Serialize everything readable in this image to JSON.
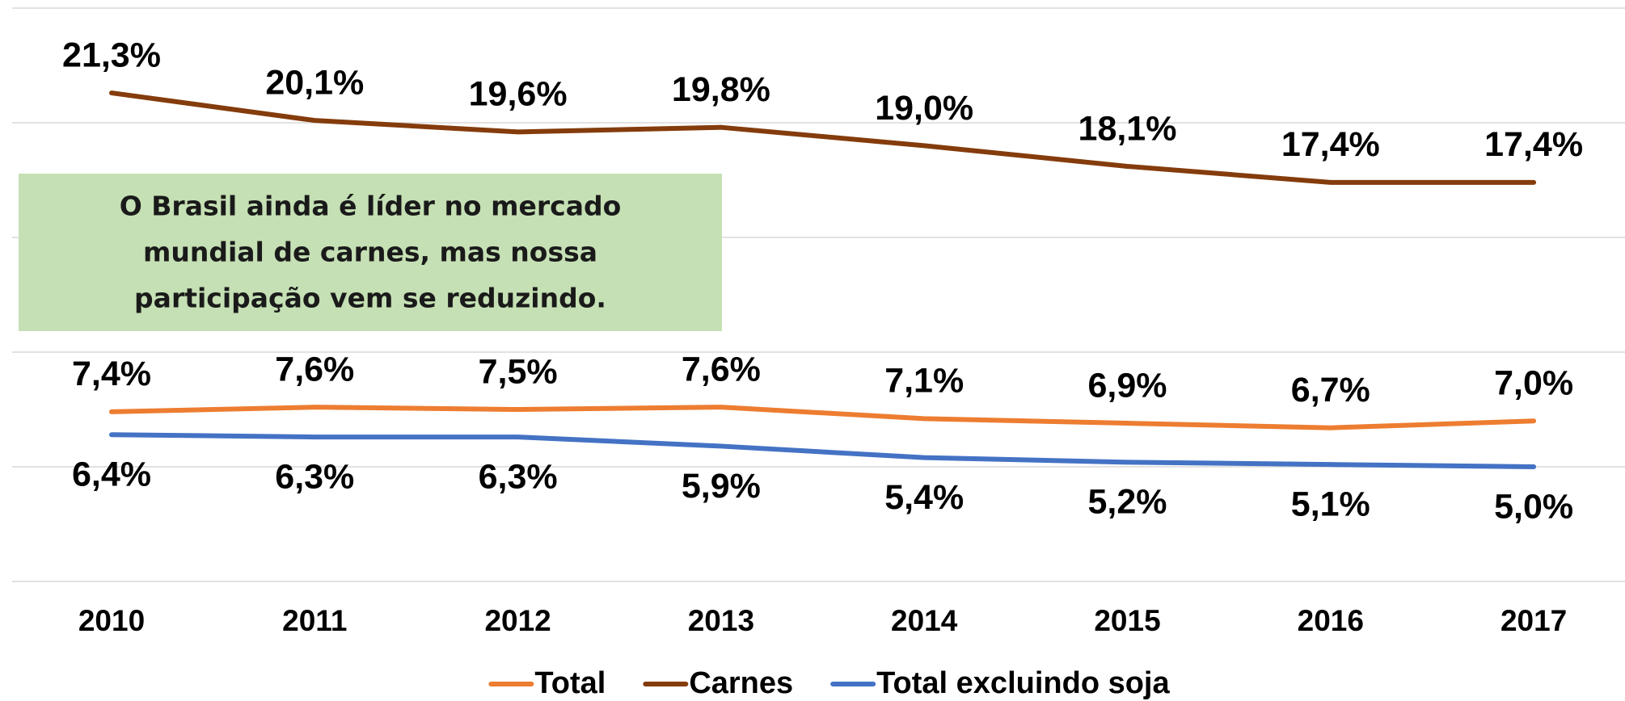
{
  "chart_data": {
    "type": "line",
    "categories": [
      "2010",
      "2011",
      "2012",
      "2013",
      "2014",
      "2015",
      "2016",
      "2017"
    ],
    "series": [
      {
        "name": "Total",
        "color": "#ed7d31",
        "values": [
          7.4,
          7.6,
          7.5,
          7.6,
          7.1,
          6.9,
          6.7,
          7.0
        ],
        "value_labels": [
          "7,4%",
          "7,6%",
          "7,5%",
          "7,6%",
          "7,1%",
          "6,9%",
          "6,7%",
          "7,0%"
        ]
      },
      {
        "name": "Carnes",
        "color": "#843c0c",
        "values": [
          21.3,
          20.1,
          19.6,
          19.8,
          19.0,
          18.1,
          17.4,
          17.4
        ],
        "value_labels": [
          "21,3%",
          "20,1%",
          "19,6%",
          "19,8%",
          "19,0%",
          "18,1%",
          "17,4%",
          "17,4%"
        ]
      },
      {
        "name": "Total excluindo soja",
        "color": "#4472c4",
        "values": [
          6.4,
          6.3,
          6.3,
          5.9,
          5.4,
          5.2,
          5.1,
          5.0
        ],
        "value_labels": [
          "6,4%",
          "6,3%",
          "6,3%",
          "5,9%",
          "5,4%",
          "5,2%",
          "5,1%",
          "5,0%"
        ]
      }
    ],
    "ylim": [
      0,
      25
    ],
    "yticks": [
      0,
      5,
      10,
      15,
      20,
      25
    ],
    "grid": true,
    "legend": "bottom",
    "annotation": [
      "O Brasil ainda é líder no mercado",
      "mundial de carnes, mas nossa",
      "participação vem se reduzindo."
    ]
  }
}
